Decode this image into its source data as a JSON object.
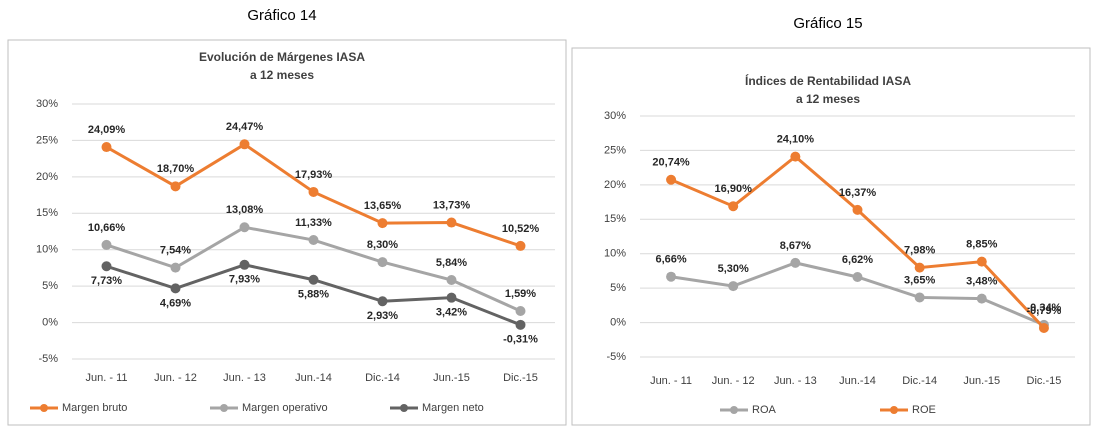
{
  "chart_data": [
    {
      "type": "line",
      "header": "Gráfico 14",
      "title": "Evolución de Márgenes IASA",
      "subtitle": "a 12 meses",
      "categories": [
        "Jun. - 11",
        "Jun. - 12",
        "Jun. - 13",
        "Jun.-14",
        "Dic.-14",
        "Jun.-15",
        "Dic.-15"
      ],
      "series": [
        {
          "name": "Margen bruto",
          "color": "#ed7d31",
          "values": [
            24.09,
            18.7,
            24.47,
            17.93,
            13.65,
            13.73,
            10.52
          ],
          "value_labels": [
            "24,09%",
            "18,70%",
            "24,47%",
            "17,93%",
            "13,65%",
            "13,73%",
            "10,52%"
          ]
        },
        {
          "name": "Margen operativo",
          "color": "#a5a5a5",
          "values": [
            10.66,
            7.54,
            13.08,
            11.33,
            8.3,
            5.84,
            1.59
          ],
          "value_labels": [
            "10,66%",
            "7,54%",
            "13,08%",
            "11,33%",
            "8,30%",
            "5,84%",
            "1,59%"
          ]
        },
        {
          "name": "Margen neto",
          "color": "#636363",
          "values": [
            7.73,
            4.69,
            7.93,
            5.88,
            2.93,
            3.42,
            -0.31
          ],
          "value_labels": [
            "7,73%",
            "4,69%",
            "7,93%",
            "5,88%",
            "2,93%",
            "3,42%",
            "-0,31%"
          ]
        }
      ],
      "ylim": [
        -5,
        30
      ],
      "yticks": [
        {
          "value": -5,
          "label": "-5%"
        },
        {
          "value": 0,
          "label": "0%"
        },
        {
          "value": 5,
          "label": "5%"
        },
        {
          "value": 10,
          "label": "10%"
        },
        {
          "value": 15,
          "label": "15%"
        },
        {
          "value": 20,
          "label": "20%"
        },
        {
          "value": 25,
          "label": "25%"
        },
        {
          "value": 30,
          "label": "30%"
        }
      ],
      "grid": true,
      "legend": "bottom"
    },
    {
      "type": "line",
      "header": "Gráfico 15",
      "title": "Índices de Rentabilidad IASA",
      "subtitle": "a 12 meses",
      "categories": [
        "Jun. - 11",
        "Jun. - 12",
        "Jun. - 13",
        "Jun.-14",
        "Dic.-14",
        "Jun.-15",
        "Dic.-15"
      ],
      "series": [
        {
          "name": "ROA",
          "color": "#a5a5a5",
          "values": [
            6.66,
            5.3,
            8.67,
            6.62,
            3.65,
            3.48,
            -0.34
          ],
          "value_labels": [
            "6,66%",
            "5,30%",
            "8,67%",
            "6,62%",
            "3,65%",
            "3,48%",
            "-0,34%"
          ]
        },
        {
          "name": "ROE",
          "color": "#ed7d31",
          "values": [
            20.74,
            16.9,
            24.1,
            16.37,
            7.98,
            8.85,
            -0.79
          ],
          "value_labels": [
            "20,74%",
            "16,90%",
            "24,10%",
            "16,37%",
            "7,98%",
            "8,85%",
            "-0,79%"
          ]
        }
      ],
      "ylim": [
        -5,
        30
      ],
      "yticks": [
        {
          "value": -5,
          "label": "-5%"
        },
        {
          "value": 0,
          "label": "0%"
        },
        {
          "value": 5,
          "label": "5%"
        },
        {
          "value": 10,
          "label": "10%"
        },
        {
          "value": 15,
          "label": "15%"
        },
        {
          "value": 20,
          "label": "20%"
        },
        {
          "value": 25,
          "label": "25%"
        },
        {
          "value": 30,
          "label": "30%"
        }
      ],
      "grid": true,
      "legend": "bottom"
    }
  ]
}
